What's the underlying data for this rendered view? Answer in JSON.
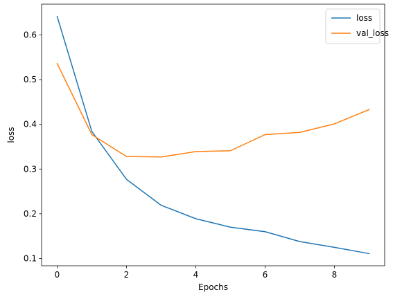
{
  "chart_data": {
    "type": "line",
    "title": "",
    "xlabel": "Epochs",
    "ylabel": "loss",
    "x": [
      0,
      1,
      2,
      3,
      4,
      5,
      6,
      7,
      8,
      9
    ],
    "xlim": [
      -0.45,
      9.45
    ],
    "ylim": [
      0.0838,
      0.6686
    ],
    "xticks": [
      0,
      2,
      4,
      6,
      8
    ],
    "yticks": [
      0.1,
      0.2,
      0.3,
      0.4,
      0.5,
      0.6
    ],
    "xtick_labels": [
      "0",
      "2",
      "4",
      "6",
      "8"
    ],
    "ytick_labels": [
      "0.1",
      "0.2",
      "0.3",
      "0.4",
      "0.5",
      "0.6"
    ],
    "grid": false,
    "legend_position": "top-right",
    "series": [
      {
        "name": "loss",
        "color": "#1f77b4",
        "values": [
          0.641,
          0.384,
          0.277,
          0.219,
          0.189,
          0.17,
          0.16,
          0.138,
          0.125,
          0.111
        ]
      },
      {
        "name": "val_loss",
        "color": "#ff7f0e",
        "values": [
          0.536,
          0.377,
          0.328,
          0.327,
          0.339,
          0.341,
          0.377,
          0.382,
          0.401,
          0.433
        ]
      }
    ]
  }
}
